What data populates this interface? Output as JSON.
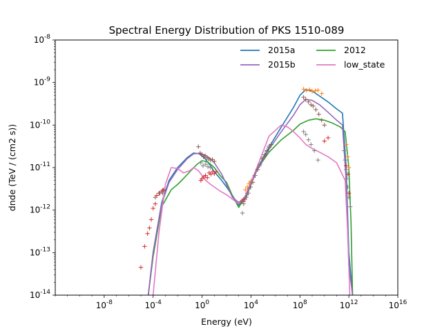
{
  "chart_data": {
    "type": "line",
    "title": "Spectral Energy Distribution of PKS 1510-089",
    "xlabel": "Energy (eV)",
    "ylabel": "dnde (TeV / (cm2 s))",
    "xscale": "log",
    "yscale": "log",
    "xlim": [
      1e-12,
      1e+16
    ],
    "ylim": [
      1e-14,
      1e-08
    ],
    "x_ticks": [
      {
        "exp": -8,
        "label": "10^-8"
      },
      {
        "exp": -4,
        "label": "10^-4"
      },
      {
        "exp": 0,
        "label": "10^0"
      },
      {
        "exp": 4,
        "label": "10^4"
      },
      {
        "exp": 8,
        "label": "10^8"
      },
      {
        "exp": 12,
        "label": "10^12"
      },
      {
        "exp": 16,
        "label": "10^16"
      }
    ],
    "y_ticks": [
      {
        "exp": -14,
        "label": "10^-14"
      },
      {
        "exp": -13,
        "label": "10^-13"
      },
      {
        "exp": -12,
        "label": "10^-12"
      },
      {
        "exp": -11,
        "label": "10^-11"
      },
      {
        "exp": -10,
        "label": "10^-10"
      },
      {
        "exp": -9,
        "label": "10^-9"
      },
      {
        "exp": -8,
        "label": "10^-8"
      }
    ],
    "legend_position": "top-right",
    "series": [
      {
        "name": "2015a",
        "color": "#1f77b4",
        "x": [
          4e-05,
          0.0001,
          0.0005,
          0.002,
          0.01,
          0.06,
          0.2,
          0.6,
          1.5,
          4.0,
          10.0,
          40.0,
          100.0,
          300.0,
          1000.0,
          4000.0,
          30000.0,
          300000.0,
          3000000.0,
          30000000.0,
          100000000.0,
          300000000.0,
          1000000000.0,
          4000000000.0,
          20000000000.0,
          100000000000.0,
          300000000000.0,
          600000000000.0,
          1000000000000.0,
          2000000000000.0
        ],
        "y": [
          1e-14,
          1e-13,
          1.5e-12,
          5e-12,
          1e-11,
          1.7e-11,
          2.2e-11,
          2.1e-11,
          1.7e-11,
          1.2e-11,
          8e-12,
          5e-12,
          3.5e-12,
          2.2e-12,
          1.3e-12,
          2e-12,
          9e-12,
          3e-11,
          9e-11,
          2.6e-10,
          5e-10,
          6.8e-10,
          6.3e-10,
          4.8e-10,
          3.5e-10,
          2.4e-10,
          1.9e-10,
          1e-11,
          1e-13,
          1e-14
        ]
      },
      {
        "name": "2012",
        "color": "#2ca02c",
        "x": [
          4e-05,
          0.0001,
          0.0005,
          0.003,
          0.01,
          0.03,
          0.1,
          0.4,
          1.0,
          3.0,
          10.0,
          30.0,
          100.0,
          300.0,
          1000.0,
          4000.0,
          30000.0,
          300000.0,
          3000000.0,
          30000000.0,
          100000000.0,
          500000000.0,
          2000000000.0,
          10000000000.0,
          50000000000.0,
          200000000000.0,
          500000000000.0,
          1000000000000.0,
          1500000000000.0,
          2000000000000.0
        ],
        "y": [
          1e-14,
          8e-14,
          1.2e-12,
          3e-12,
          4e-12,
          5.5e-12,
          8e-12,
          1.2e-11,
          1.45e-11,
          1.35e-11,
          1e-11,
          6.5e-12,
          4.5e-12,
          2.2e-12,
          1.15e-12,
          2.3e-12,
          9e-12,
          2.3e-11,
          4.5e-11,
          7.5e-11,
          1.05e-10,
          1.3e-10,
          1.4e-10,
          1.3e-10,
          1.1e-10,
          9e-11,
          7e-11,
          1e-11,
          5e-13,
          1e-14
        ]
      },
      {
        "name": "2015b",
        "color": "#9467bd",
        "x": [
          4e-05,
          0.0001,
          0.0005,
          0.002,
          0.01,
          0.06,
          0.2,
          0.6,
          1.5,
          4.0,
          10.0,
          40.0,
          100.0,
          300.0,
          1000.0,
          4000.0,
          30000.0,
          300000.0,
          3000000.0,
          30000000.0,
          100000000.0,
          300000000.0,
          1000000000.0,
          4000000000.0,
          20000000000.0,
          100000000000.0,
          300000000000.0,
          600000000000.0,
          1000000000000.0,
          2000000000000.0
        ],
        "y": [
          1e-14,
          1e-13,
          1.4e-12,
          4.5e-12,
          9e-12,
          1.6e-11,
          2.1e-11,
          2.15e-11,
          2e-11,
          1.7e-11,
          1.3e-11,
          7e-12,
          4e-12,
          2e-12,
          1.5e-12,
          2.2e-12,
          8.5e-12,
          2.7e-11,
          7e-11,
          1.7e-10,
          3e-10,
          4e-10,
          3.8e-10,
          3e-10,
          2e-10,
          1.3e-10,
          1e-10,
          5e-12,
          5e-14,
          1e-14
        ]
      },
      {
        "name": "low_state",
        "color": "#e377c2",
        "x": [
          0.0001,
          0.0003,
          0.001,
          0.003,
          0.01,
          0.03,
          0.1,
          0.2,
          0.5,
          1.0,
          2.0,
          5.0,
          10.0,
          30.0,
          100.0,
          300.0,
          1000.0,
          3000.0,
          30000.0,
          300000.0,
          3000000.0,
          10000000.0,
          30000000.0,
          100000000.0,
          300000000.0,
          1000000000.0,
          4000000000.0,
          20000000000.0,
          100000000000.0,
          500000000000.0,
          800000000000.0,
          1200000000000.0
        ],
        "y": [
          1e-14,
          3e-13,
          4e-12,
          1e-11,
          9.5e-12,
          7.5e-12,
          8.5e-12,
          1e-11,
          8.5e-12,
          6.5e-12,
          5e-12,
          4e-12,
          3.5e-12,
          2.8e-12,
          2.3e-12,
          1.8e-12,
          1.4e-12,
          2e-12,
          1e-11,
          5.5e-11,
          1e-10,
          9e-11,
          7e-11,
          5e-11,
          3.5e-11,
          2.8e-11,
          2.3e-11,
          1.8e-11,
          1.3e-11,
          5e-12,
          3e-13,
          1e-14
        ]
      }
    ],
    "points": [
      {
        "group": "red",
        "color": "#d62728",
        "x": [
          1e-05,
          2e-05,
          3.5e-05,
          5e-05,
          7e-05,
          0.0001,
          0.00015,
          0.0002,
          0.00035,
          0.0005,
          0.0007,
          0.8,
          1.0,
          1.4,
          1.9,
          2.7,
          3.8,
          5.3,
          7.3,
          10.0,
          14.0,
          2000.0,
          3200.0,
          10000000000.0,
          20000000000.0,
          600000000000.0,
          850000000000.0,
          1000000000000.0
        ],
        "y": [
          4.5e-14,
          1.4e-13,
          2.8e-13,
          3.8e-13,
          6e-13,
          1.1e-12,
          1.4e-12,
          2.2e-12,
          2.5e-12,
          2.7e-12,
          3e-12,
          5e-12,
          5.5e-12,
          6e-12,
          6.5e-12,
          5.8e-12,
          7.5e-12,
          7e-12,
          8e-12,
          7.2e-12,
          8e-12,
          1.6e-12,
          1.8e-12,
          4.2e-11,
          5e-11,
          1.1e-11,
          7e-12,
          2.5e-12
        ]
      },
      {
        "group": "brown",
        "color": "#8c564b",
        "x": [
          0.00015,
          0.0003,
          0.0006,
          0.5,
          0.7,
          1.0,
          1.3,
          1.8,
          2.5,
          3.5,
          5.0,
          7.0,
          10.0,
          2500.0,
          4000.0,
          6000.0,
          9000.0,
          14000.0,
          22000.0,
          35000.0,
          55000.0,
          85000.0,
          130000.0,
          200000.0,
          300000.0,
          450000.0,
          200000000.0,
          300000000.0,
          500000000.0,
          800000000.0,
          1200000000.0,
          2000000000.0,
          3500000000.0,
          6000000000.0,
          10000000000.0
        ],
        "y": [
          2e-12,
          2.5e-12,
          2.9e-12,
          3.1e-11,
          2.2e-11,
          2e-11,
          1.8e-11,
          1.9e-11,
          1.7e-11,
          1.6e-11,
          1.5e-11,
          1.55e-11,
          1.4e-11,
          1.6e-12,
          2e-12,
          2.5e-12,
          3.5e-12,
          4.5e-12,
          6.5e-12,
          9e-12,
          1.2e-11,
          1.6e-11,
          2e-11,
          2.5e-11,
          3e-11,
          3.5e-11,
          4.5e-10,
          4e-10,
          3.5e-10,
          3e-10,
          2.8e-10,
          2.3e-10,
          1.8e-10,
          1.3e-10,
          1e-10
        ]
      },
      {
        "group": "orange",
        "color": "#ff7f0e",
        "x": [
          3500.0,
          5000.0,
          7000.0,
          10000.0,
          200000000.0,
          350000000.0,
          600000000.0,
          1000000000.0,
          1800000000.0,
          3000000000.0,
          6000000000.0,
          600000000000.0,
          800000000000.0,
          1000000000000.0
        ],
        "y": [
          3e-12,
          3.5e-12,
          4.2e-12,
          4.8e-12,
          7e-10,
          6.5e-10,
          6.8e-10,
          6.2e-10,
          6.4e-10,
          6.6e-10,
          5.5e-10,
          3.5e-11,
          1.8e-11,
          1e-11
        ]
      },
      {
        "group": "gray",
        "color": "#7f7f7f",
        "x": [
          0.0006,
          0.8,
          1.2,
          2.0,
          3.0,
          5.0,
          2000.0,
          2500.0,
          3500.0,
          5000.0,
          7000.0,
          10000.0,
          20000.0,
          50000.0,
          100000.0,
          200000.0,
          300000.0,
          200000000.0,
          300000000.0,
          500000000.0,
          800000000.0,
          1500000000.0,
          3000000000.0,
          400000000000.0,
          500000000000.0,
          600000000000.0,
          700000000000.0,
          800000000000.0,
          1000000000000.0,
          1300000000000.0
        ],
        "y": [
          2.5e-12,
          1.3e-11,
          1.1e-11,
          1.2e-11,
          1.05e-11,
          1e-11,
          8.5e-13,
          1.4e-12,
          2e-12,
          2.5e-12,
          3.2e-12,
          4.5e-12,
          6.5e-12,
          1.1e-11,
          1.7e-11,
          2.4e-11,
          3.2e-11,
          7e-11,
          6e-11,
          4.5e-11,
          3.5e-11,
          2.5e-11,
          1.5e-11,
          2.5e-11,
          1.5e-11,
          9e-12,
          5.5e-12,
          3.5e-12,
          2e-12,
          1.2e-12
        ]
      }
    ]
  }
}
